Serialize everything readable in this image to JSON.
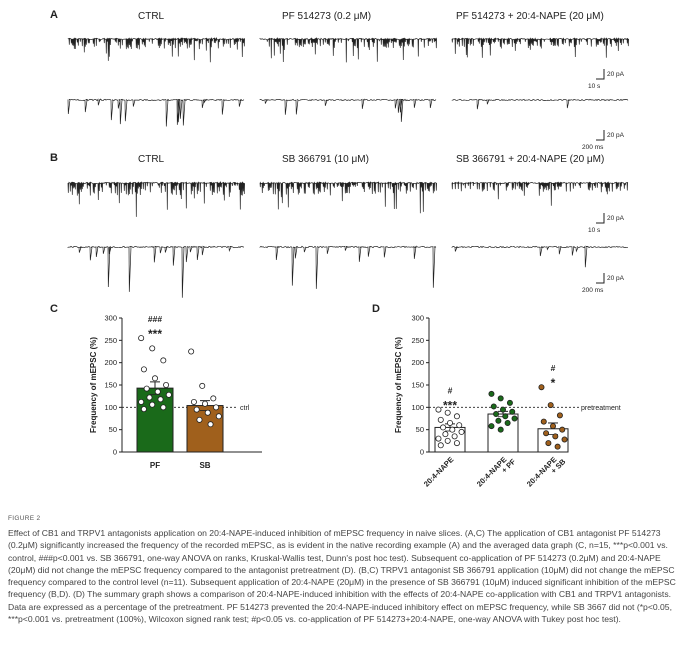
{
  "panels": {
    "A": {
      "letter": "A",
      "titles": [
        "CTRL",
        "PF 514273 (0.2 μM)",
        "PF 514273 + 20:4-NAPE (20 μM)"
      ],
      "scale_top": {
        "y": "20 pA",
        "x": "10 s"
      },
      "scale_bottom": {
        "y": "20 pA",
        "x": "200 ms"
      }
    },
    "B": {
      "letter": "B",
      "titles": [
        "CTRL",
        "SB 366791 (10 μM)",
        "SB 366791 + 20:4-NAPE (20 μM)"
      ],
      "scale_top": {
        "y": "20 pA",
        "x": "10 s"
      },
      "scale_bottom": {
        "y": "20 pA",
        "x": "200 ms"
      }
    },
    "C": {
      "letter": "C"
    },
    "D": {
      "letter": "D"
    }
  },
  "chart_data": [
    {
      "type": "bar",
      "panel": "C",
      "ylabel": "Frequency of mEPSC (%)",
      "ylim": [
        0,
        300
      ],
      "yticks": [
        0,
        50,
        100,
        150,
        200,
        250,
        300
      ],
      "categories": [
        "PF",
        "SB"
      ],
      "values": [
        143,
        104
      ],
      "errors": [
        14,
        11
      ],
      "bar_colors": [
        "#1a6a1a",
        "#a0601c"
      ],
      "reference_line": {
        "value": 100,
        "label": "ctrl"
      },
      "significance": [
        {
          "category": "PF",
          "marks": [
            "###",
            "***"
          ]
        }
      ],
      "points": [
        [
          255,
          232,
          205,
          185,
          165,
          150,
          142,
          135,
          128,
          122,
          118,
          112,
          106,
          100,
          96
        ],
        [
          225,
          148,
          120,
          112,
          108,
          100,
          95,
          88,
          80,
          72,
          62
        ]
      ],
      "point_colors": [
        "#ffffff",
        "#ffffff"
      ]
    },
    {
      "type": "bar",
      "panel": "D",
      "ylabel": "Frequency of mEPSC (%)",
      "ylim": [
        0,
        300
      ],
      "yticks": [
        0,
        50,
        100,
        150,
        200,
        250,
        300
      ],
      "categories": [
        "20:4-NAPE",
        "20:4-NAPE\n+ PF",
        "20:4-NAPE\n+ SB"
      ],
      "values": [
        55,
        85,
        52
      ],
      "errors": [
        8,
        6,
        13
      ],
      "bar_colors": [
        "#ffffff",
        "#ffffff",
        "#ffffff"
      ],
      "reference_line": {
        "value": 100,
        "label": "pretreatment"
      },
      "significance": [
        {
          "category": "20:4-NAPE",
          "marks": [
            "#",
            "***"
          ]
        },
        {
          "category": "20:4-NAPE\n+ SB",
          "marks": [
            "#",
            "*"
          ]
        }
      ],
      "points": [
        [
          95,
          88,
          80,
          72,
          65,
          60,
          55,
          50,
          45,
          40,
          35,
          30,
          25,
          20,
          15
        ],
        [
          130,
          120,
          110,
          102,
          95,
          90,
          85,
          80,
          75,
          70,
          65,
          58,
          50
        ],
        [
          145,
          105,
          82,
          68,
          58,
          50,
          42,
          35,
          28,
          20,
          12
        ]
      ],
      "point_colors": [
        "#ffffff",
        "#1a6a1a",
        "#a0601c"
      ]
    }
  ],
  "caption": {
    "figure_label": "FIGURE 2",
    "text": "Effect of CB1 and TRPV1 antagonists application on 20:4-NAPE-induced inhibition of mEPSC frequency in naive slices. (A,C) The application of CB1 antagonist PF 514273 (0.2μM) significantly increased the frequency of the recorded mEPSC, as is evident in the native recording example (A) and the averaged data graph (C, n=15, ***p<0.001 vs. control, ###p<0.001 vs. SB 366791, one-way ANOVA on ranks, Kruskal-Wallis test, Dunn's post hoc test). Subsequent co-application of PF 514273 (0.2μM) and 20:4-NAPE (20μM) did not change the mEPSC frequency compared to the antagonist pretreatment (D). (B,C) TRPV1 antagonist SB 366791 application (10μM) did not change the mEPSC frequency compared to the control level (n=11). Subsequent application of 20:4-NAPE (20μM) in the presence of SB 366791 (10μM) induced significant inhibition of the mEPSC frequency (B,D). (D) The summary graph shows a comparison of 20:4-NAPE-induced inhibition with the effects of 20:4-NAPE co-application with CB1 and TRPV1 antagonists. Data are expressed as a percentage of the pretreatment. PF 514273 prevented the 20:4-NAPE-induced inhibitory effect on mEPSC frequency, while SB 3667 did not (*p<0.05, ***p<0.001 vs. pretreatment (100%), Wilcoxon signed rank test; #p<0.05 vs. co-application of PF 514273+20:4-NAPE, one-way ANOVA with Tukey post hoc test)."
  }
}
